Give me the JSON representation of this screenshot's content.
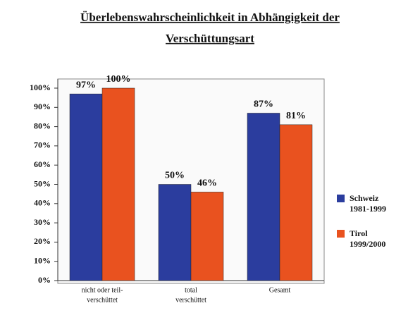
{
  "chart_data": {
    "type": "bar",
    "title": [
      "Überlebenswahrscheinlichkeit in Abhängigkeit der",
      "Verschüttungsart"
    ],
    "categories": [
      [
        "nicht oder teil-",
        "verschüttet"
      ],
      [
        "total",
        "verschüttet"
      ],
      [
        "Gesamt"
      ]
    ],
    "series": [
      {
        "name": [
          "Schweiz",
          "1981-1999"
        ],
        "color": "#2b3d9e",
        "values": [
          97,
          50,
          87
        ],
        "value_labels": [
          "97%",
          "50%",
          "87%"
        ]
      },
      {
        "name": [
          "Tirol",
          "1999/2000"
        ],
        "color": "#e9521f",
        "values": [
          100,
          46,
          81
        ],
        "value_labels": [
          "100%",
          "46%",
          "81%"
        ]
      }
    ],
    "ylim": [
      0,
      100
    ],
    "yticks": [
      {
        "value": 0,
        "label": "0%"
      },
      {
        "value": 10,
        "label": "10%"
      },
      {
        "value": 20,
        "label": "20%"
      },
      {
        "value": 30,
        "label": "30%"
      },
      {
        "value": 40,
        "label": "40%"
      },
      {
        "value": 50,
        "label": "50%"
      },
      {
        "value": 60,
        "label": "60%"
      },
      {
        "value": 70,
        "label": "70%"
      },
      {
        "value": 80,
        "label": "80%"
      },
      {
        "value": 90,
        "label": "90%"
      },
      {
        "value": 100,
        "label": "100%"
      }
    ],
    "legend": "right"
  }
}
